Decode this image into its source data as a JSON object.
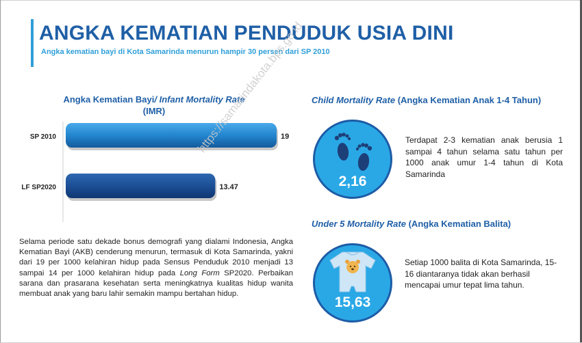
{
  "header": {
    "title": "ANGKA KEMATIAN PENDUDUK USIA DINI",
    "subtitle": "Angka kematian bayi di Kota Samarinda menurun hampir 30 persen dari SP 2010"
  },
  "chart": {
    "title_plain": "Angka Kematian Bayi",
    "title_italic": "/ Infant Mortality Rate",
    "title_line2": "(IMR)"
  },
  "chart_data": {
    "type": "bar",
    "orientation": "horizontal",
    "categories": [
      "SP 2010",
      "LF SP2020"
    ],
    "values": [
      19,
      13.47
    ],
    "value_labels": [
      "19",
      "13.47"
    ],
    "title": "Angka Kematian Bayi/ Infant Mortality Rate (IMR)",
    "xlabel": "",
    "ylabel": "",
    "grid": false,
    "colors": [
      "#2386cf",
      "#1c4f96"
    ]
  },
  "body": {
    "part1": "Selama periode satu dekade bonus demografi yang dialami Indonesia, Angka Kematian Bayi (AKB) cenderung menurun, termasuk di Kota Samarinda, yakni dari 19 per 1000 kelahiran hidup pada Sensus Penduduk 2010 menjadi 13 sampai 14 per 1000 kelahiran hidup pada ",
    "italic": "Long Form",
    "part2": " SP2020. Perbaikan sarana dan prasarana kesehatan serta meningkatnya kualitas hidup wanita membuat anak yang baru lahir semakin mampu bertahan hidup."
  },
  "child": {
    "title_italic": "Child Mortality Rate",
    "title_rest": " (Angka Kematian Anak 1-4 Tahun)",
    "value": "2,16",
    "icon": "footprints-icon",
    "description": "Terdapat 2-3 kematian anak berusia 1 sampai 4 tahun selama satu tahun per 1000 anak umur 1-4 tahun di Kota Samarinda"
  },
  "under5": {
    "title_italic": "Under 5 Mortality Rate",
    "title_rest": " (Angka Kematian Balita)",
    "value": "15,63",
    "icon": "baby-romper-icon",
    "description": "Setiap 1000 balita di Kota Samarinda, 15-16 diantaranya tidak akan berhasil mencapai umur tepat lima tahun."
  },
  "watermark": "https://samarindakota.bps.go.id",
  "colors": {
    "title": "#1f5fa6",
    "accent": "#2f9fd8",
    "circle": "#2aa8e6"
  }
}
